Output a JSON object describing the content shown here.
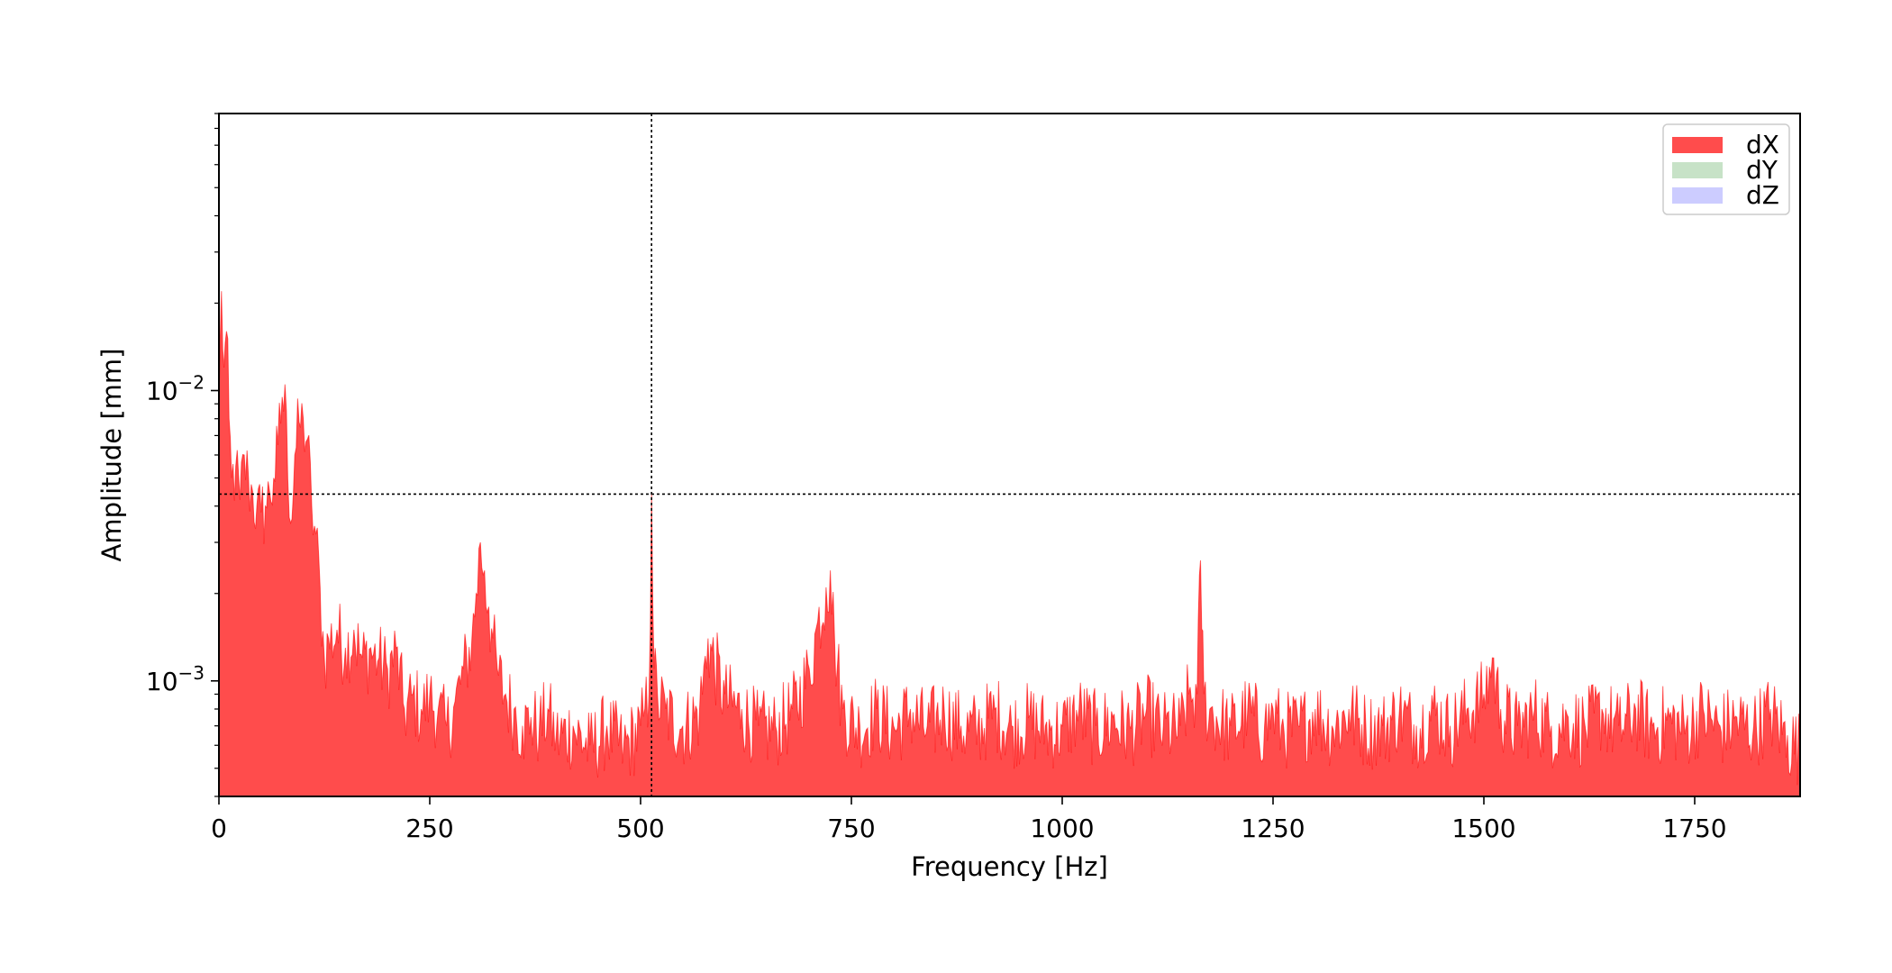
{
  "chart_data": {
    "type": "area",
    "title": "",
    "xlabel": "Frequency [Hz]",
    "ylabel": "Amplitude [mm]",
    "xlim": [
      0,
      1875
    ],
    "ylim": [
      0.0004,
      0.09
    ],
    "yscale": "log",
    "x_ticks": [
      0,
      250,
      500,
      750,
      1000,
      1250,
      1500,
      1750
    ],
    "x_tick_labels": [
      "0",
      "250",
      "500",
      "750",
      "1000",
      "1250",
      "1500",
      "1750"
    ],
    "y_major_ticks": [
      0.001,
      0.01
    ],
    "y_tick_labels": [
      {
        "base": "10",
        "exp": "−3"
      },
      {
        "base": "10",
        "exp": "−2"
      }
    ],
    "grid": false,
    "legend_position": "top-right",
    "crosshair": {
      "x": 513,
      "y": 0.0044,
      "style": "dotted",
      "color": "#000000"
    },
    "series": [
      {
        "name": "dX",
        "color": "#ff0000",
        "fill_opacity": 0.7,
        "x": [
          0,
          3,
          6,
          9,
          12,
          15,
          20,
          25,
          30,
          35,
          40,
          45,
          50,
          55,
          60,
          65,
          70,
          75,
          80,
          85,
          90,
          95,
          100,
          105,
          110,
          115,
          120,
          125,
          130,
          140,
          150,
          160,
          170,
          180,
          190,
          200,
          210,
          220,
          230,
          240,
          250,
          260,
          270,
          280,
          290,
          300,
          305,
          310,
          315,
          320,
          325,
          330,
          340,
          350,
          360,
          370,
          380,
          390,
          400,
          420,
          440,
          460,
          480,
          500,
          505,
          510,
          513,
          516,
          520,
          530,
          550,
          570,
          580,
          600,
          620,
          640,
          660,
          680,
          700,
          710,
          720,
          725,
          730,
          740,
          760,
          780,
          800,
          820,
          840,
          860,
          880,
          900,
          920,
          940,
          960,
          980,
          1000,
          1020,
          1040,
          1060,
          1080,
          1100,
          1120,
          1140,
          1150,
          1160,
          1164,
          1168,
          1175,
          1200,
          1220,
          1240,
          1250,
          1260,
          1280,
          1300,
          1320,
          1340,
          1360,
          1380,
          1400,
          1420,
          1440,
          1460,
          1480,
          1500,
          1510,
          1520,
          1540,
          1560,
          1580,
          1600,
          1620,
          1640,
          1660,
          1680,
          1700,
          1720,
          1740,
          1760,
          1780,
          1800,
          1820,
          1840,
          1860,
          1875
        ],
        "values": [
          0.009,
          0.022,
          0.012,
          0.016,
          0.008,
          0.005,
          0.0055,
          0.0042,
          0.006,
          0.005,
          0.0045,
          0.004,
          0.0038,
          0.004,
          0.0045,
          0.005,
          0.0065,
          0.0095,
          0.0085,
          0.0035,
          0.006,
          0.0078,
          0.008,
          0.0068,
          0.004,
          0.0032,
          0.0021,
          0.0012,
          0.0014,
          0.0015,
          0.0013,
          0.0015,
          0.0012,
          0.0013,
          0.0012,
          0.0011,
          0.0013,
          0.0008,
          0.0009,
          0.0008,
          0.0009,
          0.0008,
          0.0007,
          0.00085,
          0.0011,
          0.0014,
          0.002,
          0.003,
          0.0024,
          0.0018,
          0.0014,
          0.0011,
          0.0009,
          0.0008,
          0.0007,
          0.00075,
          0.0007,
          0.0008,
          0.00065,
          0.0007,
          0.0006,
          0.0007,
          0.0006,
          0.0007,
          0.0008,
          0.0009,
          0.0044,
          0.0011,
          0.0009,
          0.0008,
          0.0007,
          0.0008,
          0.0014,
          0.0009,
          0.0008,
          0.0007,
          0.0007,
          0.0008,
          0.0011,
          0.0016,
          0.0021,
          0.0024,
          0.0014,
          0.0008,
          0.0007,
          0.0008,
          0.0007,
          0.0008,
          0.0007,
          0.0008,
          0.0007,
          0.0007,
          0.0008,
          0.0007,
          0.00075,
          0.0007,
          0.0007,
          0.0008,
          0.0007,
          0.00075,
          0.0007,
          0.0008,
          0.0007,
          0.0007,
          0.0009,
          0.0009,
          0.0026,
          0.0009,
          0.0008,
          0.0007,
          0.0008,
          0.0007,
          0.0008,
          0.0007,
          0.0007,
          0.0008,
          0.0007,
          0.0008,
          0.0007,
          0.0007,
          0.0008,
          0.0007,
          0.0008,
          0.0007,
          0.0008,
          0.0009,
          0.0012,
          0.0008,
          0.0007,
          0.0008,
          0.0007,
          0.00075,
          0.0007,
          0.0008,
          0.0007,
          0.0008,
          0.0007,
          0.00075,
          0.0007,
          0.0008,
          0.0007,
          0.00075,
          0.0007,
          0.0008,
          0.00065,
          0.0006
        ]
      },
      {
        "name": "dY",
        "color": "#1e8c1e",
        "fill_opacity": 0.25,
        "x": [],
        "values": []
      },
      {
        "name": "dZ",
        "color": "#0000ff",
        "fill_opacity": 0.2,
        "x": [],
        "values": []
      }
    ]
  }
}
